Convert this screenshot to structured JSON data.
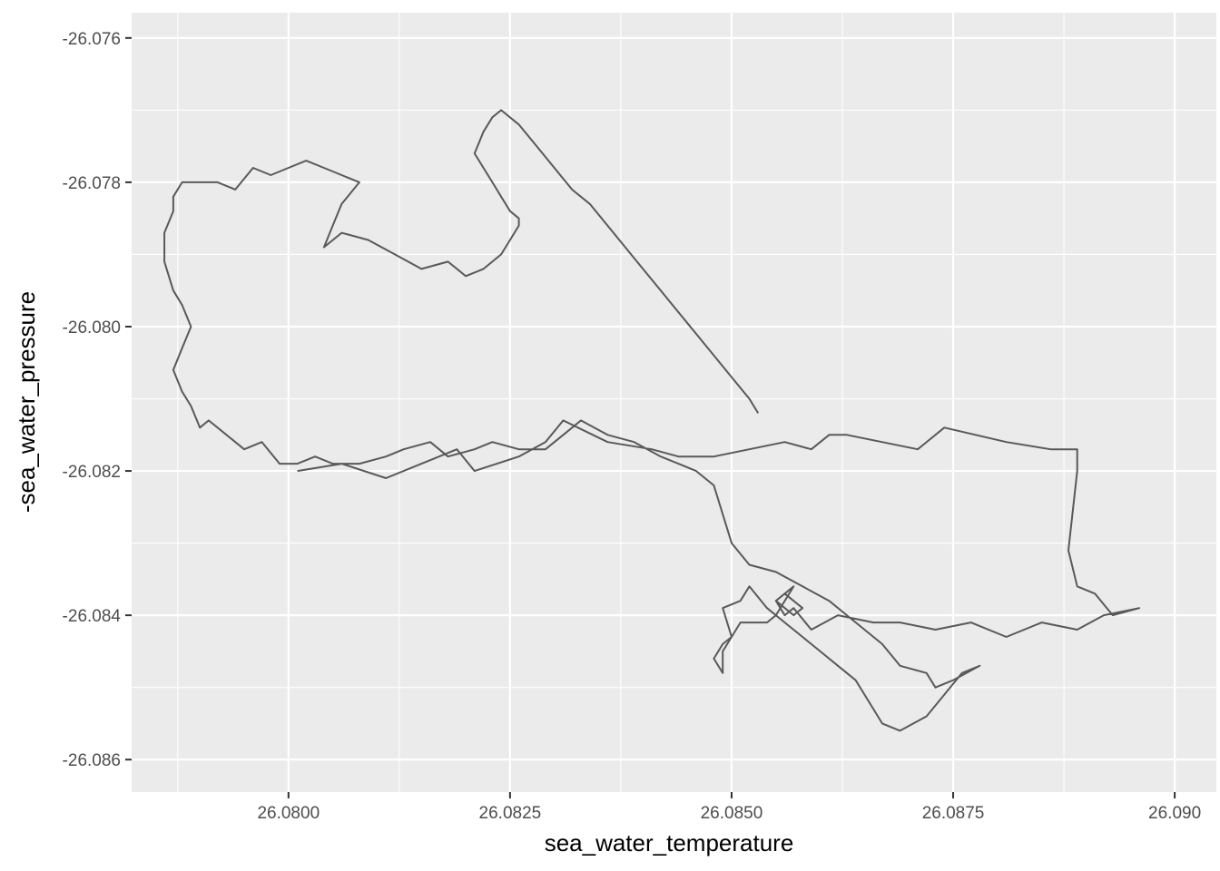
{
  "chart_data": {
    "type": "line",
    "title": "",
    "xlabel": "sea_water_temperature",
    "ylabel": "-sea_water_pressure",
    "xlim": [
      26.07823,
      26.09047
    ],
    "ylim": [
      -26.08645,
      -26.07565
    ],
    "x_ticks": [
      {
        "value": 26.08,
        "label": "26.0800"
      },
      {
        "value": 26.0825,
        "label": "26.0825"
      },
      {
        "value": 26.085,
        "label": "26.0850"
      },
      {
        "value": 26.0875,
        "label": "26.0875"
      },
      {
        "value": 26.09,
        "label": "26.090"
      }
    ],
    "y_ticks": [
      {
        "value": -26.076,
        "label": "-26.076"
      },
      {
        "value": -26.078,
        "label": "-26.078"
      },
      {
        "value": -26.08,
        "label": "-26.080"
      },
      {
        "value": -26.082,
        "label": "-26.082"
      },
      {
        "value": -26.084,
        "label": "-26.084"
      },
      {
        "value": -26.086,
        "label": "-26.086"
      }
    ],
    "grid": true,
    "line_color": "#595959",
    "panel_color": "#ebebeb",
    "series": [
      {
        "x": [
          26.0801,
          26.0806,
          26.0811,
          26.0815,
          26.0819,
          26.0821,
          26.0826,
          26.0829,
          26.0831,
          26.0836,
          26.0841,
          26.0844,
          26.0848,
          26.0852,
          26.0856,
          26.0859,
          26.0861,
          26.0863,
          26.0871,
          26.0874,
          26.0881,
          26.0886,
          26.0889,
          26.0889,
          26.0888,
          26.0889,
          26.0891,
          26.0893,
          26.0896,
          26.0892,
          26.0889,
          26.0885,
          26.0881,
          26.0877,
          26.0873,
          26.0869,
          26.0866,
          26.0862,
          26.0859,
          26.0857,
          26.0856,
          26.0855,
          26.0856,
          26.0858,
          26.0857,
          26.0855,
          26.0856,
          26.0857,
          26.0855,
          26.0854,
          26.0851,
          26.0849,
          26.0849,
          26.0848,
          26.0849,
          26.085,
          26.0849,
          26.0851,
          26.0852,
          26.0854,
          26.0856,
          26.0858,
          26.086,
          26.0862,
          26.0864,
          26.0865,
          26.0866,
          26.0867,
          26.0869,
          26.0872,
          26.0874,
          26.0876,
          26.0878,
          26.0875,
          26.0873,
          26.0872,
          26.0869,
          26.0867,
          26.0865,
          26.0863,
          26.0861,
          26.0858,
          26.0855,
          26.0852,
          26.085,
          26.0849,
          26.0848,
          26.0846,
          26.0844,
          26.0842,
          26.0839,
          26.0836,
          26.0833,
          26.0831,
          26.0829,
          26.0826,
          26.0823,
          26.0821,
          26.0818,
          26.0816,
          26.0813,
          26.0811,
          26.0808,
          26.0805,
          26.0803,
          26.0801,
          26.0799,
          26.0797,
          26.0795,
          26.0793,
          26.0791,
          26.079,
          26.0789,
          26.0788,
          26.0787,
          26.0788,
          26.0789,
          26.0788,
          26.0787,
          26.0786,
          26.0786,
          26.0787,
          26.0787,
          26.0788,
          26.079,
          26.0792,
          26.0794,
          26.0796,
          26.0798,
          26.08,
          26.0802,
          26.0804,
          26.0806,
          26.0808,
          26.0806,
          26.0805,
          26.0804,
          26.0806,
          26.0809,
          26.0812,
          26.0815,
          26.0818,
          26.082,
          26.0822,
          26.0824,
          26.0825,
          26.0826,
          26.0826,
          26.0825,
          26.0824,
          26.0823,
          26.0822,
          26.0821,
          26.0822,
          26.0823,
          26.0824,
          26.0826,
          26.0828,
          26.083,
          26.0832,
          26.0834,
          26.0836,
          26.0838,
          26.084,
          26.0842,
          26.0844,
          26.0846,
          26.0848,
          26.085,
          26.0852,
          26.0853
        ],
        "y": [
          -26.082,
          -26.0819,
          -26.0821,
          -26.0819,
          -26.0817,
          -26.082,
          -26.0818,
          -26.0816,
          -26.0813,
          -26.0816,
          -26.0817,
          -26.0818,
          -26.0818,
          -26.0817,
          -26.0816,
          -26.0817,
          -26.0815,
          -26.0815,
          -26.0817,
          -26.0814,
          -26.0816,
          -26.0817,
          -26.0817,
          -26.082,
          -26.0831,
          -26.0836,
          -26.0837,
          -26.084,
          -26.0839,
          -26.084,
          -26.0842,
          -26.0841,
          -26.0843,
          -26.0841,
          -26.0842,
          -26.0841,
          -26.0841,
          -26.084,
          -26.0842,
          -26.0839,
          -26.084,
          -26.0838,
          -26.0837,
          -26.0839,
          -26.084,
          -26.0838,
          -26.0837,
          -26.0836,
          -26.084,
          -26.0841,
          -26.0841,
          -26.0845,
          -26.0848,
          -26.0846,
          -26.0844,
          -26.0843,
          -26.0839,
          -26.0838,
          -26.0836,
          -26.0839,
          -26.0841,
          -26.0843,
          -26.0845,
          -26.0847,
          -26.0849,
          -26.0851,
          -26.0853,
          -26.0855,
          -26.0856,
          -26.0854,
          -26.0851,
          -26.0848,
          -26.0847,
          -26.0849,
          -26.085,
          -26.0848,
          -26.0847,
          -26.0844,
          -26.0842,
          -26.084,
          -26.0838,
          -26.0836,
          -26.0834,
          -26.0833,
          -26.083,
          -26.0826,
          -26.0822,
          -26.082,
          -26.0819,
          -26.0818,
          -26.0816,
          -26.0815,
          -26.0813,
          -26.0815,
          -26.0817,
          -26.0817,
          -26.0816,
          -26.0817,
          -26.0818,
          -26.0816,
          -26.0817,
          -26.0818,
          -26.0819,
          -26.0819,
          -26.0818,
          -26.0819,
          -26.0819,
          -26.0816,
          -26.0817,
          -26.0815,
          -26.0813,
          -26.0814,
          -26.0811,
          -26.0809,
          -26.0806,
          -26.0803,
          -26.08,
          -26.0797,
          -26.0795,
          -26.0791,
          -26.0787,
          -26.0784,
          -26.0782,
          -26.078,
          -26.078,
          -26.078,
          -26.0781,
          -26.0778,
          -26.0779,
          -26.0778,
          -26.0777,
          -26.0778,
          -26.0779,
          -26.078,
          -26.0783,
          -26.0786,
          -26.0789,
          -26.0787,
          -26.0788,
          -26.079,
          -26.0792,
          -26.0791,
          -26.0793,
          -26.0792,
          -26.079,
          -26.0788,
          -26.0786,
          -26.0785,
          -26.0784,
          -26.0782,
          -26.078,
          -26.0778,
          -26.0776,
          -26.0773,
          -26.0771,
          -26.077,
          -26.0772,
          -26.0775,
          -26.0778,
          -26.0781,
          -26.0783,
          -26.0786,
          -26.0789,
          -26.0792,
          -26.0795,
          -26.0798,
          -26.0801,
          -26.0804,
          -26.0807,
          -26.081,
          -26.0812
        ]
      }
    ]
  }
}
